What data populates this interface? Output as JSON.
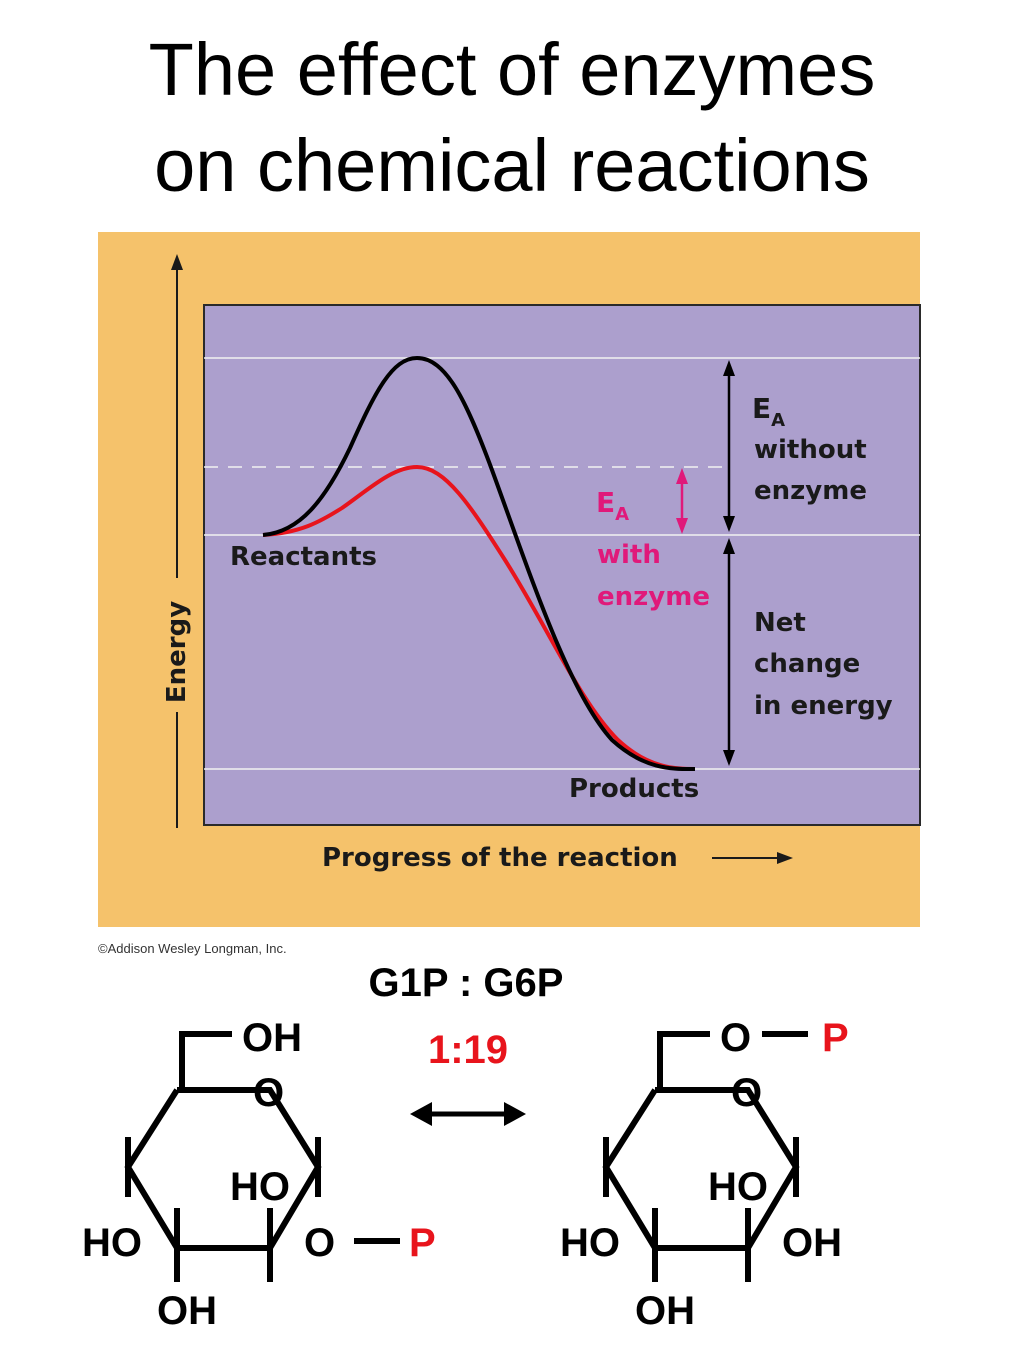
{
  "slide": {
    "title_line1": "The effect of enzymes",
    "title_line2": "on chemical reactions"
  },
  "diagram": {
    "reactants_label": "Reactants",
    "products_label": "Products",
    "y_axis_label": "Energy",
    "x_axis_label": "Progress of the reaction",
    "ea_symbol": "E",
    "ea_subscript": "A",
    "ea_without_line1": "without",
    "ea_without_line2": "enzyme",
    "ea_with_line1": "with",
    "ea_with_line2": "enzyme",
    "net_line1": "Net",
    "net_line2": "change",
    "net_line3": "in energy",
    "credit": "©Addison Wesley Longman, Inc.",
    "colors": {
      "frame": "#f5c26b",
      "plot_bg": "#ac9fcd",
      "without_enzyme": "#000000",
      "with_enzyme": "#e8141c",
      "ea_with_label": "#e0197a"
    }
  },
  "equilibrium": {
    "ratio_label": "G1P : G6P",
    "ratio_value": "1:19",
    "ratio_color": "#e8141c"
  },
  "g1p": {
    "top_oh": "OH",
    "ring_o": "O",
    "inner_ho": "HO",
    "left_ho": "HO",
    "bottom_oh": "OH",
    "phosphate_o": "O",
    "phosphate_p": "P"
  },
  "g6p": {
    "top_o": "O",
    "top_p": "P",
    "ring_o": "O",
    "inner_ho": "HO",
    "left_ho": "HO",
    "right_oh": "OH",
    "bottom_oh": "OH"
  }
}
